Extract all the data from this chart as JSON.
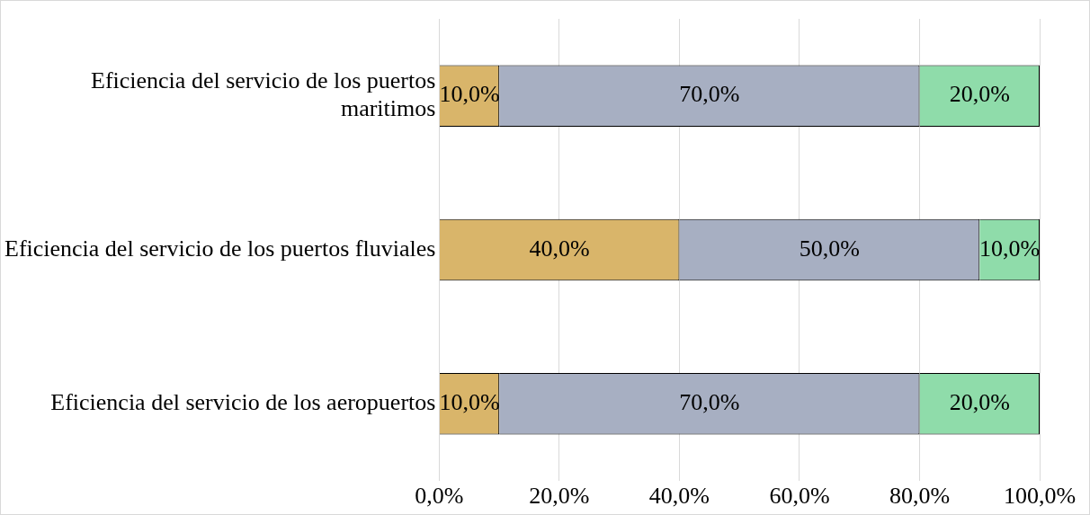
{
  "chart_data": {
    "type": "bar",
    "orientation": "horizontal",
    "stacked": true,
    "categories": [
      "Eficiencia del servicio de los puertos maritimos",
      "Eficiencia del servicio de los puertos fluviales",
      "Eficiencia del servicio de los aeropuertos"
    ],
    "series": [
      {
        "color": "#d9b56a",
        "values": [
          10,
          40,
          10
        ],
        "value_labels": [
          "10,0%",
          "40,0%",
          "10,0%"
        ]
      },
      {
        "color": "#a7afc2",
        "values": [
          70,
          50,
          70
        ],
        "value_labels": [
          "70,0%",
          "50,0%",
          "70,0%"
        ]
      },
      {
        "color": "#8fdcaa",
        "values": [
          20,
          10,
          20
        ],
        "value_labels": [
          "20,0%",
          "10,0%",
          "20,0%"
        ]
      }
    ],
    "xlim": [
      0,
      100
    ],
    "xticks": [
      {
        "value": 0,
        "label": "0,0%"
      },
      {
        "value": 20,
        "label": "20,0%"
      },
      {
        "value": 40,
        "label": "40,0%"
      },
      {
        "value": 60,
        "label": "60,0%"
      },
      {
        "value": 80,
        "label": "80,0%"
      },
      {
        "value": 100,
        "label": "100,0%"
      }
    ],
    "grid": "x",
    "legend": false
  }
}
